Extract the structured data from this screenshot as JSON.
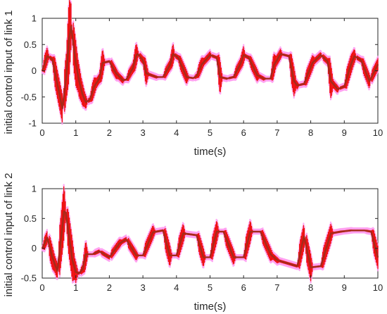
{
  "chart_data": [
    {
      "type": "line",
      "xlabel": "time(s)",
      "ylabel": "initial control input of link 1",
      "xlim": [
        0,
        10
      ],
      "ylim": [
        -1,
        1
      ],
      "xticks": [
        "0",
        "1",
        "2",
        "3",
        "4",
        "5",
        "6",
        "7",
        "8",
        "9",
        "10"
      ],
      "yticks": [
        "-1",
        "-0.5",
        "0",
        "0.5",
        "1"
      ],
      "colors": {
        "band": "#ee1111",
        "mean": "#a52a1a",
        "halo": "#ff9cf0"
      },
      "series": [
        {
          "x": [
            0,
            0.15,
            0.3,
            0.45,
            0.6,
            0.72,
            0.8,
            0.86,
            0.92,
            1.0,
            1.1,
            1.2,
            1.3,
            1.42,
            1.55,
            1.7,
            1.8,
            2.0,
            2.2,
            2.4,
            2.5,
            2.7,
            2.8,
            2.85,
            3.0,
            3.1,
            3.4,
            3.6,
            3.8,
            3.9,
            4.05,
            4.3,
            4.5,
            4.6,
            4.75,
            5.0,
            5.2,
            5.3,
            5.5,
            5.7,
            5.9,
            6.0,
            6.15,
            6.4,
            6.6,
            6.8,
            6.9,
            7.1,
            7.35,
            7.5,
            7.6,
            7.8,
            8.05,
            8.3,
            8.5,
            8.6,
            8.8,
            9.0,
            9.2,
            9.3,
            9.5,
            9.75,
            10.0
          ],
          "values": [
            0.0,
            0.28,
            0.22,
            -0.25,
            -0.72,
            -0.1,
            0.6,
            0.85,
            0.55,
            0.15,
            -0.2,
            -0.45,
            -0.6,
            -0.55,
            -0.3,
            -0.15,
            0.15,
            0.18,
            -0.05,
            -0.18,
            -0.17,
            0.05,
            0.3,
            0.32,
            0.2,
            -0.05,
            -0.12,
            -0.12,
            0.1,
            0.32,
            0.25,
            -0.12,
            -0.14,
            -0.1,
            0.12,
            0.3,
            0.25,
            -0.12,
            -0.15,
            -0.12,
            0.12,
            0.3,
            0.25,
            -0.08,
            -0.15,
            -0.15,
            0.1,
            0.32,
            0.28,
            -0.2,
            -0.28,
            -0.25,
            0.15,
            0.3,
            0.18,
            -0.2,
            -0.35,
            -0.3,
            0.12,
            0.28,
            0.2,
            -0.2,
            0.12
          ]
        }
      ]
    },
    {
      "type": "line",
      "xlabel": "time(s)",
      "ylabel": "initial control input of link 2",
      "xlim": [
        0,
        10
      ],
      "ylim": [
        -0.5,
        1
      ],
      "xticks": [
        "0",
        "1",
        "2",
        "3",
        "4",
        "5",
        "6",
        "7",
        "8",
        "9",
        "10"
      ],
      "yticks": [
        "-0.5",
        "0",
        "0.5",
        "1"
      ],
      "colors": {
        "band": "#ee1111",
        "mean": "#a52a1a",
        "halo": "#ff9cf0"
      },
      "series": [
        {
          "x": [
            0,
            0.15,
            0.3,
            0.45,
            0.55,
            0.65,
            0.7,
            0.8,
            0.9,
            1.0,
            1.1,
            1.2,
            1.3,
            1.5,
            1.7,
            2.0,
            2.3,
            2.5,
            2.8,
            3.0,
            3.3,
            3.6,
            3.8,
            4.0,
            4.2,
            4.6,
            4.8,
            5.0,
            5.2,
            5.4,
            5.7,
            6.0,
            6.2,
            6.5,
            6.8,
            7.0,
            7.3,
            7.6,
            7.8,
            8.0,
            8.3,
            8.6,
            8.9,
            9.2,
            9.4,
            9.6,
            9.8,
            10.0
          ],
          "values": [
            0.0,
            0.18,
            -0.15,
            -0.38,
            0.1,
            0.62,
            0.6,
            0.2,
            -0.2,
            -0.4,
            -0.42,
            -0.35,
            -0.1,
            -0.1,
            -0.05,
            -0.15,
            0.08,
            0.15,
            -0.12,
            -0.12,
            0.27,
            0.3,
            -0.12,
            -0.12,
            0.25,
            0.22,
            -0.15,
            -0.15,
            0.28,
            0.28,
            -0.15,
            -0.15,
            0.28,
            0.28,
            -0.1,
            -0.2,
            -0.25,
            -0.3,
            0.2,
            -0.32,
            -0.3,
            0.25,
            0.28,
            0.3,
            0.3,
            0.3,
            0.28,
            -0.15
          ]
        }
      ]
    }
  ]
}
